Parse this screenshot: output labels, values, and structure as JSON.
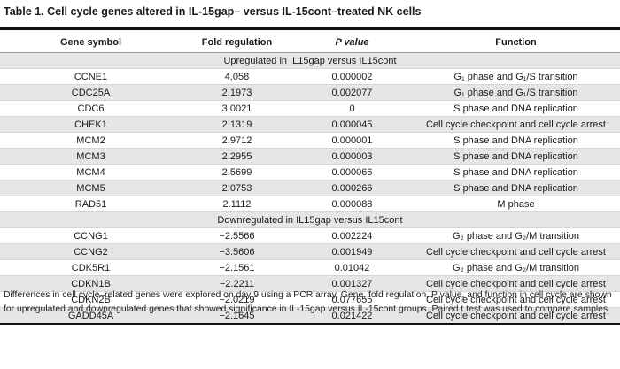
{
  "title": "Table 1. Cell cycle genes altered in IL-15gap– versus IL-15cont–treated NK cells",
  "headers": {
    "gene": "Gene symbol",
    "fold": "Fold regulation",
    "p": "P value",
    "function": "Function"
  },
  "sections": [
    {
      "label": "Upregulated in IL15gap versus IL15cont",
      "rows": [
        {
          "gene": "CCNE1",
          "fold": "4.058",
          "p": "0.000002",
          "function": "G₁ phase and G₁/S transition"
        },
        {
          "gene": "CDC25A",
          "fold": "2.1973",
          "p": "0.002077",
          "function": "G₁ phase and G₁/S transition"
        },
        {
          "gene": "CDC6",
          "fold": "3.0021",
          "p": "0",
          "function": "S phase and DNA replication"
        },
        {
          "gene": "CHEK1",
          "fold": "2.1319",
          "p": "0.000045",
          "function": "Cell cycle checkpoint and cell cycle arrest"
        },
        {
          "gene": "MCM2",
          "fold": "2.9712",
          "p": "0.000001",
          "function": "S phase and DNA replication"
        },
        {
          "gene": "MCM3",
          "fold": "2.2955",
          "p": "0.000003",
          "function": "S phase and DNA replication"
        },
        {
          "gene": "MCM4",
          "fold": "2.5699",
          "p": "0.000066",
          "function": "S phase and DNA replication"
        },
        {
          "gene": "MCM5",
          "fold": "2.0753",
          "p": "0.000266",
          "function": "S phase and DNA replication"
        },
        {
          "gene": "RAD51",
          "fold": "2.1112",
          "p": "0.000088",
          "function": "M phase"
        }
      ]
    },
    {
      "label": "Downregulated in IL15gap versus IL15cont",
      "rows": [
        {
          "gene": "CCNG1",
          "fold": "−2.5566",
          "p": "0.002224",
          "function": "G₂ phase and G₂/M transition"
        },
        {
          "gene": "CCNG2",
          "fold": "−3.5606",
          "p": "0.001949",
          "function": "Cell cycle checkpoint and cell cycle arrest"
        },
        {
          "gene": "CDK5R1",
          "fold": "−2.1561",
          "p": "0.01042",
          "function": "G₂ phase and G₂/M transition"
        },
        {
          "gene": "CDKN1B",
          "fold": "−2.2211",
          "p": "0.001327",
          "function": "Cell cycle checkpoint and cell cycle arrest"
        },
        {
          "gene": "CDKN2B",
          "fold": "−2.0219",
          "p": "0.077655",
          "function": "Cell cycle checkpoint and cell cycle arrest"
        },
        {
          "gene": "GADD45A",
          "fold": "−2.1645",
          "p": "0.021422",
          "function": "Cell cycle checkpoint and cell cycle arrest"
        }
      ]
    }
  ],
  "footnote": "Differences in cell cycle–related genes were explored on day 9 using a PCR array. Gene, fold regulation, P value, and function in cell cycle are shown for upregulated and downregulated genes that showed significance in IL-15gap versus IL-15cont groups. Paired t test was used to compare samples."
}
